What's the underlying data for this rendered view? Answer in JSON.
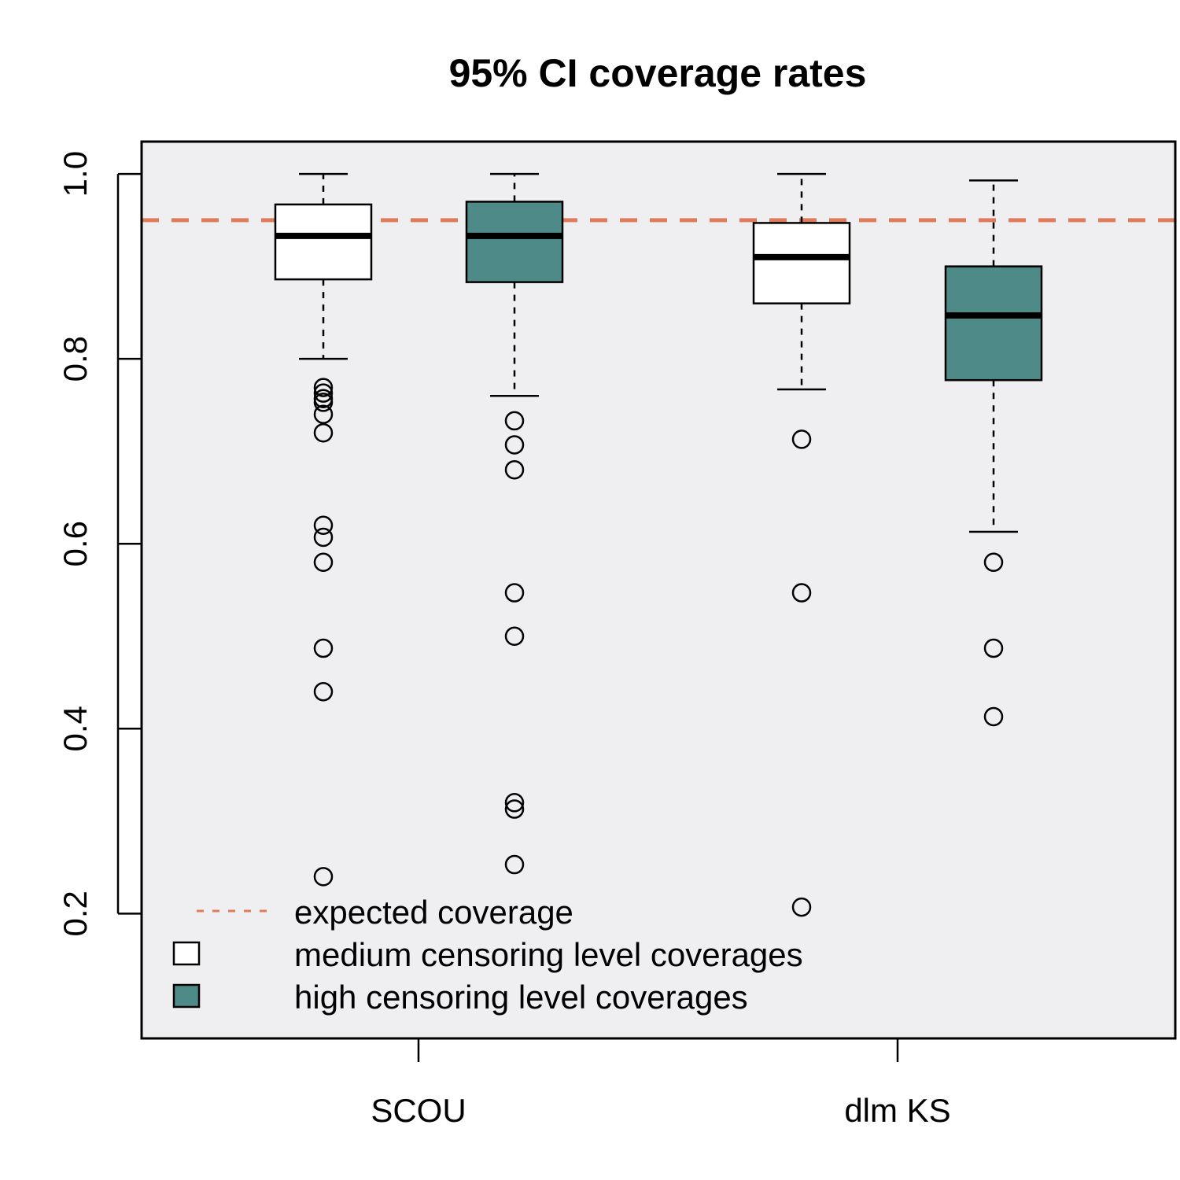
{
  "chart_data": {
    "type": "boxplot",
    "title": "95% CI coverage rates",
    "xlabel": "",
    "ylabel": "",
    "ylim": [
      0.065,
      1.035
    ],
    "yticks": [
      0.2,
      0.4,
      0.6,
      0.8,
      1.0
    ],
    "ytick_labels": [
      "0.2",
      "0.4",
      "0.6",
      "0.8",
      "1.0"
    ],
    "categories": [
      "SCOU",
      "dlm KS"
    ],
    "reference_line": {
      "value": 0.95,
      "color": "#E07B5A",
      "style": "dashed",
      "label": "expected coverage"
    },
    "series": [
      {
        "name": "medium censoring level coverages",
        "fill": "#FFFFFF"
      },
      {
        "name": "high censoring level coverages",
        "fill": "#4E8A87"
      }
    ],
    "boxes": [
      {
        "category": "SCOU",
        "series": "medium censoring level coverages",
        "whisker_low": 0.8,
        "q1": 0.886,
        "median": 0.933,
        "q3": 0.967,
        "whisker_high": 1.0,
        "outliers": [
          0.769,
          0.763,
          0.757,
          0.753,
          0.74,
          0.72,
          0.62,
          0.607,
          0.58,
          0.487,
          0.44,
          0.24
        ]
      },
      {
        "category": "SCOU",
        "series": "high censoring level coverages",
        "whisker_low": 0.76,
        "q1": 0.883,
        "median": 0.933,
        "q3": 0.97,
        "whisker_high": 1.0,
        "outliers": [
          0.733,
          0.707,
          0.68,
          0.547,
          0.5,
          0.32,
          0.313,
          0.253
        ]
      },
      {
        "category": "dlm KS",
        "series": "medium censoring level coverages",
        "whisker_low": 0.767,
        "q1": 0.86,
        "median": 0.91,
        "q3": 0.947,
        "whisker_high": 1.0,
        "outliers": [
          0.713,
          0.547,
          0.207
        ]
      },
      {
        "category": "dlm KS",
        "series": "high censoring level coverages",
        "whisker_low": 0.613,
        "q1": 0.777,
        "median": 0.847,
        "q3": 0.9,
        "whisker_high": 0.993,
        "outliers": [
          0.58,
          0.487,
          0.413
        ]
      }
    ],
    "legend": {
      "position": "bottom-left",
      "entries": [
        {
          "label": "expected coverage",
          "symbol": "dashed-line",
          "color": "#E07B5A"
        },
        {
          "label": "medium censoring level coverages",
          "symbol": "box",
          "color": "#FFFFFF"
        },
        {
          "label": "high censoring level coverages",
          "symbol": "box",
          "color": "#4E8A87"
        }
      ]
    },
    "plot_background": "#EFEFF1"
  }
}
